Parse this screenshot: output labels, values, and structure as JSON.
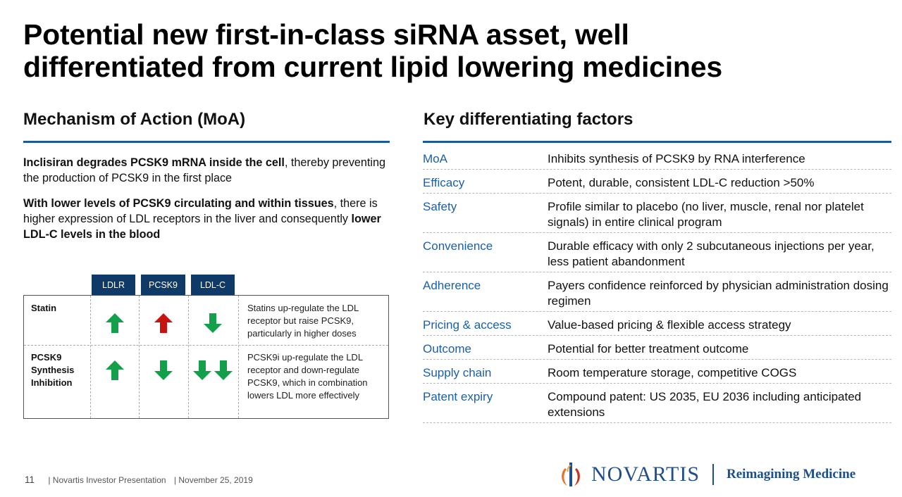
{
  "title": {
    "line1": "Potential new first-in-class siRNA asset, well",
    "line2": "differentiated from current lipid lowering medicines"
  },
  "left": {
    "heading": "Mechanism of Action (MoA)",
    "para1": [
      {
        "text": "Inclisiran degrades PCSK9 mRNA inside the cell",
        "bold": true
      },
      {
        "text": ", thereby preventing the production of PCSK9 in the first place",
        "bold": false
      }
    ],
    "para2": [
      {
        "text": "With lower levels of PCSK9 circulating and within tissues",
        "bold": true
      },
      {
        "text": ", there is higher expression of LDL receptors in the liver and consequently ",
        "bold": false
      },
      {
        "text": "lower LDL-C levels in the blood",
        "bold": true
      }
    ],
    "table": {
      "columns": [
        "LDLR",
        "PCSK9",
        "LDL-C"
      ],
      "rows": [
        {
          "label": "Statin",
          "arrows": [
            [
              "up-green"
            ],
            [
              "up-red"
            ],
            [
              "down-green"
            ]
          ],
          "note": "Statins up-regulate the LDL receptor but raise PCSK9, particularly in higher doses"
        },
        {
          "label": "PCSK9 Synthesis Inhibition",
          "arrows": [
            [
              "up-green"
            ],
            [
              "down-green"
            ],
            [
              "down-green",
              "down-green"
            ]
          ],
          "note": "PCSK9i up-regulate the LDL receptor and down-regulate PCSK9, which in combination lowers LDL more effectively"
        }
      ]
    }
  },
  "right": {
    "heading": "Key differentiating factors",
    "rows": [
      {
        "key": "MoA",
        "value": "Inhibits synthesis of PCSK9 by RNA interference"
      },
      {
        "key": "Efficacy",
        "value": "Potent, durable, consistent LDL-C reduction >50%"
      },
      {
        "key": "Safety",
        "value": "Profile similar to placebo (no liver, muscle, renal nor platelet signals) in entire clinical program"
      },
      {
        "key": "Convenience",
        "value": "Durable efficacy with only 2 subcutaneous injections per year, less patient abandonment"
      },
      {
        "key": "Adherence",
        "value": "Payers confidence reinforced by physician administration dosing regimen"
      },
      {
        "key": "Pricing & access",
        "value": "Value-based pricing & flexible access strategy"
      },
      {
        "key": "Outcome",
        "value": "Potential for better treatment outcome"
      },
      {
        "key": "Supply chain",
        "value": "Room temperature storage, competitive COGS"
      },
      {
        "key": "Patent expiry",
        "value": "Compound patent: US 2035, EU 2036 including anticipated extensions"
      }
    ]
  },
  "footer": {
    "page": "11",
    "text1": "| Novartis Investor Presentation",
    "text2": "| November 25, 2019"
  },
  "logo": {
    "word": "NOVARTIS",
    "tagline": "Reimagining Medicine"
  },
  "colors": {
    "accent_blue": "#1b5a99",
    "header_navy": "#0f3a68",
    "key_blue": "#1d5fa6",
    "arrow_green": "#14a04a",
    "arrow_red": "#c8140f"
  }
}
